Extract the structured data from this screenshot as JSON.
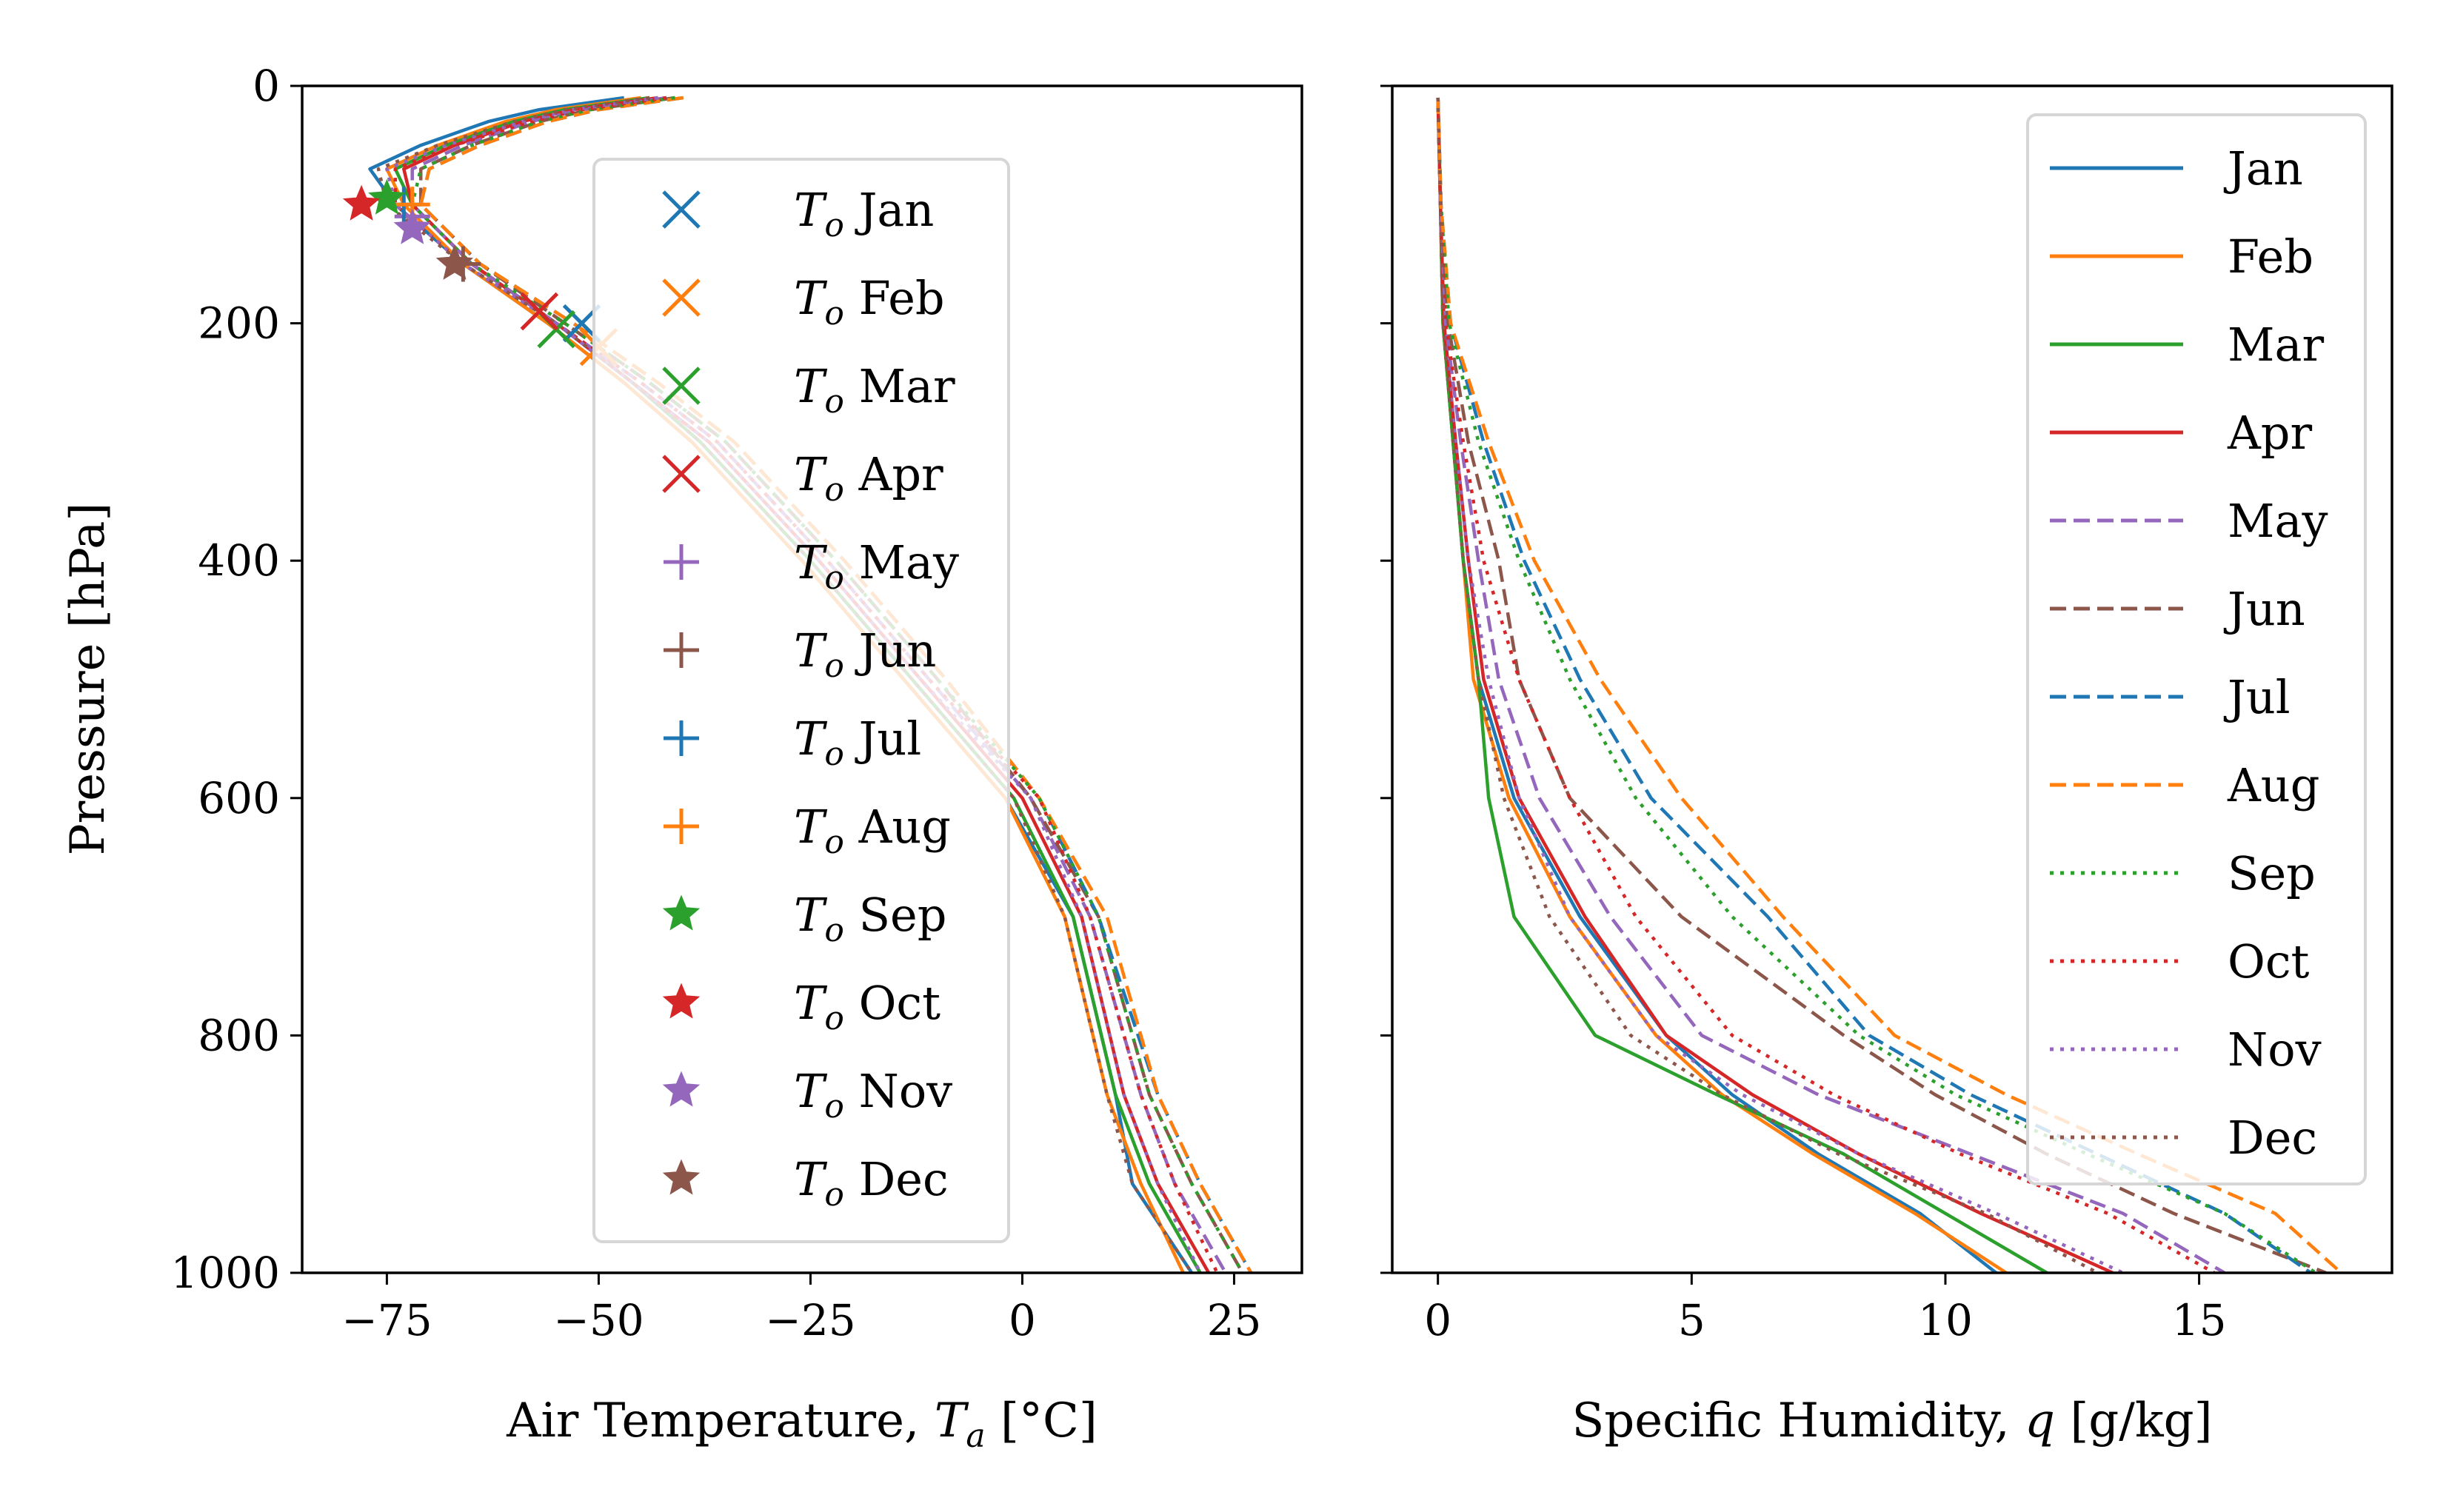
{
  "chart_data": [
    {
      "type": "line",
      "xlabel": "Air Temperature, T_a [°C]",
      "ylabel": "Pressure [hPa]",
      "xlim": [
        -85,
        33
      ],
      "ylim": [
        1000,
        0
      ],
      "y_inverted": true,
      "xticks": [
        -75,
        -50,
        -25,
        0,
        25
      ],
      "xtick_labels": [
        "−75",
        "−50",
        "−25",
        "0",
        "25"
      ],
      "yticks": [
        0,
        200,
        400,
        600,
        800,
        1000
      ],
      "ytick_labels": [
        "0",
        "200",
        "400",
        "600",
        "800",
        "1000"
      ],
      "legend_position": "center",
      "pressure_levels": [
        10,
        20,
        30,
        50,
        70,
        100,
        150,
        200,
        250,
        300,
        400,
        500,
        600,
        700,
        850,
        925,
        1000
      ],
      "series": [
        {
          "name": "Jan",
          "color": "#1f77b4",
          "dash": "solid",
          "values": [
            -47,
            -57,
            -63,
            -71,
            -77,
            -74,
            -66,
            -56,
            -47,
            -39,
            -26,
            -14,
            -2,
            6,
            11,
            13,
            20
          ]
        },
        {
          "name": "Feb",
          "color": "#ff7f0e",
          "dash": "solid",
          "values": [
            -45,
            -55,
            -61,
            -69,
            -75,
            -73,
            -66,
            -56,
            -47,
            -39,
            -26,
            -14,
            -2,
            5,
            10,
            14,
            19
          ]
        },
        {
          "name": "Mar",
          "color": "#2ca02c",
          "dash": "solid",
          "values": [
            -44,
            -54,
            -60,
            -68,
            -74,
            -72,
            -65,
            -55,
            -46,
            -38,
            -25,
            -13,
            -1,
            6,
            11,
            15,
            21
          ]
        },
        {
          "name": "Apr",
          "color": "#d62728",
          "dash": "solid",
          "values": [
            -43,
            -53,
            -59,
            -67,
            -73,
            -72,
            -65,
            -55,
            -46,
            -37,
            -24,
            -12,
            0,
            7,
            12,
            16,
            22
          ]
        },
        {
          "name": "May",
          "color": "#9467bd",
          "dash": "dashed",
          "values": [
            -42,
            -52,
            -58,
            -66,
            -72,
            -72,
            -65,
            -55,
            -45,
            -36,
            -23,
            -11,
            1,
            8,
            14,
            18,
            24
          ]
        },
        {
          "name": "Jun",
          "color": "#8c564b",
          "dash": "dashed",
          "values": [
            -41,
            -51,
            -57,
            -65,
            -71,
            -71,
            -64,
            -54,
            -44,
            -35,
            -22,
            -10,
            1,
            9,
            15,
            20,
            26
          ]
        },
        {
          "name": "Jul",
          "color": "#1f77b4",
          "dash": "dashed",
          "values": [
            -40,
            -50,
            -56,
            -64,
            -70,
            -71,
            -64,
            -53,
            -43,
            -34,
            -21,
            -9,
            2,
            9,
            16,
            21,
            27
          ]
        },
        {
          "name": "Aug",
          "color": "#ff7f0e",
          "dash": "dashed",
          "values": [
            -40,
            -50,
            -56,
            -64,
            -70,
            -71,
            -64,
            -53,
            -43,
            -34,
            -21,
            -9,
            2,
            10,
            16,
            21,
            27
          ]
        },
        {
          "name": "Sep",
          "color": "#2ca02c",
          "dash": "dotted",
          "values": [
            -41,
            -51,
            -57,
            -65,
            -71,
            -72,
            -65,
            -54,
            -44,
            -35,
            -22,
            -10,
            2,
            9,
            15,
            20,
            26
          ]
        },
        {
          "name": "Oct",
          "color": "#d62728",
          "dash": "dotted",
          "values": [
            -42,
            -52,
            -58,
            -67,
            -74,
            -74,
            -66,
            -55,
            -45,
            -36,
            -23,
            -11,
            2,
            8,
            14,
            18,
            23
          ]
        },
        {
          "name": "Nov",
          "color": "#9467bd",
          "dash": "dotted",
          "values": [
            -43,
            -53,
            -59,
            -68,
            -75,
            -74,
            -66,
            -55,
            -46,
            -37,
            -24,
            -12,
            1,
            7,
            12,
            16,
            21
          ]
        },
        {
          "name": "Dec",
          "color": "#8c564b",
          "dash": "dotted",
          "values": [
            -44,
            -54,
            -60,
            -69,
            -76,
            -75,
            -66,
            -55,
            -46,
            -38,
            -25,
            -13,
            -1,
            5,
            10,
            13,
            20
          ]
        }
      ],
      "tropopause_markers": [
        {
          "name": "T_o Jan",
          "marker": "x",
          "color": "#1f77b4",
          "x": -52,
          "y": 200
        },
        {
          "name": "T_o Feb",
          "marker": "x",
          "color": "#ff7f0e",
          "x": -50,
          "y": 220
        },
        {
          "name": "T_o Mar",
          "marker": "x",
          "color": "#2ca02c",
          "x": -55,
          "y": 205
        },
        {
          "name": "T_o Apr",
          "marker": "x",
          "color": "#d62728",
          "x": -57,
          "y": 190
        },
        {
          "name": "T_o May",
          "marker": "plus",
          "color": "#9467bd",
          "x": -72,
          "y": 110
        },
        {
          "name": "T_o Jun",
          "marker": "plus",
          "color": "#8c564b",
          "x": -66,
          "y": 150
        },
        {
          "name": "T_o Jul",
          "marker": "plus",
          "color": "#1f77b4",
          "x": -73,
          "y": 100
        },
        {
          "name": "T_o Aug",
          "marker": "plus",
          "color": "#ff7f0e",
          "x": -72,
          "y": 100
        },
        {
          "name": "T_o Sep",
          "marker": "star",
          "color": "#2ca02c",
          "x": -75,
          "y": 95
        },
        {
          "name": "T_o Oct",
          "marker": "star",
          "color": "#d62728",
          "x": -78,
          "y": 100
        },
        {
          "name": "T_o Nov",
          "marker": "star",
          "color": "#9467bd",
          "x": -72,
          "y": 120
        },
        {
          "name": "T_o Dec",
          "marker": "star",
          "color": "#8c564b",
          "x": -67,
          "y": 150
        }
      ],
      "legend": [
        "T_o Jan",
        "T_o Feb",
        "T_o Mar",
        "T_o Apr",
        "T_o May",
        "T_o Jun",
        "T_o Jul",
        "T_o Aug",
        "T_o Sep",
        "T_o Oct",
        "T_o Nov",
        "T_o Dec"
      ]
    },
    {
      "type": "line",
      "xlabel": "Specific Humidity, q [g/kg]",
      "ylabel": "",
      "xlim": [
        -0.9,
        18.8
      ],
      "ylim": [
        1000,
        0
      ],
      "y_inverted": true,
      "shared_y": true,
      "xticks": [
        0,
        5,
        10,
        15
      ],
      "xtick_labels": [
        "0",
        "5",
        "10",
        "15"
      ],
      "legend_position": "upper right",
      "pressure_levels": [
        10,
        100,
        200,
        300,
        400,
        500,
        600,
        700,
        800,
        850,
        900,
        950,
        1000
      ],
      "series": [
        {
          "name": "Jan",
          "color": "#1f77b4",
          "dash": "solid",
          "values": [
            0.0,
            0.05,
            0.1,
            0.3,
            0.5,
            0.8,
            1.5,
            2.8,
            4.5,
            5.8,
            7.5,
            9.5,
            11.0
          ]
        },
        {
          "name": "Feb",
          "color": "#ff7f0e",
          "dash": "solid",
          "values": [
            0.0,
            0.05,
            0.1,
            0.3,
            0.5,
            0.7,
            1.4,
            2.6,
            4.3,
            5.6,
            7.4,
            9.4,
            11.2
          ]
        },
        {
          "name": "Mar",
          "color": "#2ca02c",
          "dash": "solid",
          "values": [
            0.0,
            0.05,
            0.1,
            0.3,
            0.5,
            0.8,
            1.0,
            1.5,
            3.1,
            5.5,
            8.0,
            10.0,
            12.0
          ]
        },
        {
          "name": "Apr",
          "color": "#d62728",
          "dash": "solid",
          "values": [
            0.0,
            0.05,
            0.12,
            0.35,
            0.6,
            0.9,
            1.6,
            2.9,
            4.5,
            6.2,
            8.3,
            10.7,
            13.3
          ]
        },
        {
          "name": "May",
          "color": "#9467bd",
          "dash": "dashed",
          "values": [
            0.0,
            0.05,
            0.15,
            0.45,
            0.8,
            1.2,
            2.0,
            3.4,
            5.2,
            7.5,
            10.5,
            13.5,
            15.5
          ]
        },
        {
          "name": "Jun",
          "color": "#8c564b",
          "dash": "dashed",
          "values": [
            0.0,
            0.06,
            0.2,
            0.6,
            1.2,
            1.6,
            2.6,
            4.8,
            8.0,
            9.8,
            12.0,
            14.5,
            17.5
          ]
        },
        {
          "name": "Jul",
          "color": "#1f77b4",
          "dash": "dashed",
          "values": [
            0.0,
            0.06,
            0.25,
            0.9,
            1.7,
            2.8,
            4.2,
            6.5,
            8.5,
            10.5,
            13.0,
            15.5,
            17.2
          ]
        },
        {
          "name": "Aug",
          "color": "#ff7f0e",
          "dash": "dashed",
          "values": [
            0.0,
            0.06,
            0.25,
            1.0,
            1.9,
            3.2,
            4.8,
            6.8,
            9.0,
            11.2,
            13.8,
            16.5,
            17.8
          ]
        },
        {
          "name": "Sep",
          "color": "#2ca02c",
          "dash": "dotted",
          "values": [
            0.0,
            0.06,
            0.22,
            0.8,
            1.6,
            2.6,
            3.9,
            5.8,
            8.3,
            10.2,
            12.8,
            15.5,
            17.3
          ]
        },
        {
          "name": "Oct",
          "color": "#d62728",
          "dash": "dotted",
          "values": [
            0.0,
            0.05,
            0.15,
            0.5,
            0.9,
            1.6,
            2.6,
            3.9,
            5.8,
            7.8,
            10.3,
            13.2,
            15.3
          ]
        },
        {
          "name": "Nov",
          "color": "#9467bd",
          "dash": "dotted",
          "values": [
            0.0,
            0.05,
            0.1,
            0.35,
            0.6,
            1.0,
            1.6,
            2.6,
            4.3,
            6.0,
            8.3,
            11.0,
            13.5
          ]
        },
        {
          "name": "Dec",
          "color": "#8c564b",
          "dash": "dotted",
          "values": [
            0.0,
            0.05,
            0.1,
            0.3,
            0.5,
            0.8,
            1.3,
            2.2,
            3.8,
            5.6,
            7.9,
            10.8,
            13.0
          ]
        }
      ],
      "legend": [
        "Jan",
        "Feb",
        "Mar",
        "Apr",
        "May",
        "Jun",
        "Jul",
        "Aug",
        "Sep",
        "Oct",
        "Nov",
        "Dec"
      ]
    }
  ]
}
